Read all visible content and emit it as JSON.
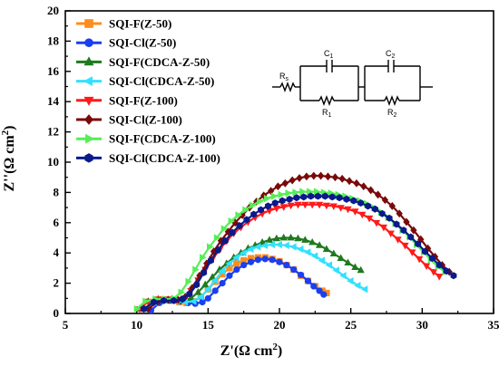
{
  "chart_data": {
    "type": "scatter",
    "title": "",
    "xlabel": "Z'(Ω cm²)",
    "ylabel": "Z''(Ω cm²)",
    "xlabel_parts": {
      "main": "Z'(Ω cm",
      "sup": "2",
      "end": ")"
    },
    "ylabel_parts": {
      "main": "Z''(Ω cm",
      "sup": "2",
      "end": ")"
    },
    "xlim": [
      5,
      35
    ],
    "ylim": [
      0,
      20
    ],
    "xticks": [
      5,
      10,
      15,
      20,
      25,
      30,
      35
    ],
    "yticks": [
      0,
      2,
      4,
      6,
      8,
      10,
      12,
      14,
      16,
      18,
      20
    ],
    "grid": false,
    "legend_position": "top-left",
    "series": [
      {
        "name": "SQI-F(Z-50)",
        "color": "#ff8c1a",
        "marker": "square",
        "x": [
          10.5,
          11.0,
          11.8,
          12.5,
          13.0,
          13.5,
          14.0,
          14.5,
          15.0,
          15.5,
          16.0,
          16.5,
          17.0,
          17.5,
          18.0,
          18.5,
          19.0,
          19.5,
          20.0,
          20.5,
          21.0,
          21.5,
          22.0,
          22.5,
          23.0,
          23.3
        ],
        "y": [
          0.3,
          0.7,
          0.9,
          0.85,
          0.75,
          0.7,
          0.8,
          1.1,
          1.6,
          2.1,
          2.6,
          3.0,
          3.3,
          3.5,
          3.65,
          3.7,
          3.7,
          3.6,
          3.45,
          3.2,
          2.9,
          2.5,
          2.15,
          1.8,
          1.5,
          1.35
        ]
      },
      {
        "name": "SQI-Cl(Z-50)",
        "color": "#1a3ff0",
        "marker": "circle",
        "x": [
          11.0,
          11.6,
          12.3,
          13.0,
          13.6,
          14.1,
          14.6,
          15.0,
          15.5,
          16.0,
          16.5,
          17.0,
          17.5,
          18.0,
          18.5,
          19.0,
          19.5,
          20.0,
          20.5,
          21.0,
          21.5,
          22.0,
          22.4,
          22.8,
          23.1
        ],
        "y": [
          0.2,
          0.7,
          0.85,
          0.8,
          0.7,
          0.65,
          0.75,
          1.0,
          1.5,
          2.0,
          2.5,
          2.9,
          3.2,
          3.4,
          3.55,
          3.6,
          3.55,
          3.4,
          3.2,
          2.9,
          2.55,
          2.15,
          1.8,
          1.5,
          1.25
        ]
      },
      {
        "name": "SQI-F(CDCA-Z-50)",
        "color": "#1e7a1e",
        "marker": "triangle-up",
        "x": [
          10.2,
          10.8,
          11.5,
          12.2,
          12.8,
          13.3,
          13.8,
          14.3,
          14.8,
          15.3,
          15.8,
          16.3,
          16.8,
          17.3,
          17.8,
          18.3,
          18.8,
          19.3,
          19.8,
          20.3,
          20.8,
          21.3,
          21.8,
          22.3,
          22.8,
          23.3,
          23.8,
          24.3,
          24.8,
          25.3,
          25.7
        ],
        "y": [
          0.3,
          0.8,
          0.95,
          0.9,
          0.85,
          0.85,
          1.0,
          1.4,
          1.9,
          2.4,
          2.9,
          3.3,
          3.7,
          4.0,
          4.3,
          4.5,
          4.7,
          4.85,
          4.95,
          5.0,
          5.0,
          4.95,
          4.85,
          4.7,
          4.5,
          4.25,
          3.95,
          3.65,
          3.35,
          3.05,
          2.85
        ]
      },
      {
        "name": "SQI-Cl(CDCA-Z-50)",
        "color": "#33e0ff",
        "marker": "triangle-left",
        "x": [
          10.5,
          11.2,
          12.0,
          12.8,
          13.4,
          14.0,
          14.5,
          15.0,
          15.5,
          16.0,
          16.5,
          17.0,
          17.5,
          18.0,
          18.5,
          19.0,
          19.5,
          20.0,
          20.5,
          21.0,
          21.5,
          22.0,
          22.5,
          23.0,
          23.5,
          24.0,
          24.5,
          25.0,
          25.5,
          26.0
        ],
        "y": [
          0.3,
          0.75,
          0.85,
          0.8,
          0.75,
          0.8,
          1.1,
          1.6,
          2.2,
          2.8,
          3.3,
          3.7,
          4.0,
          4.25,
          4.4,
          4.5,
          4.55,
          4.55,
          4.5,
          4.4,
          4.25,
          4.05,
          3.8,
          3.5,
          3.2,
          2.85,
          2.5,
          2.15,
          1.85,
          1.6
        ]
      },
      {
        "name": "SQI-F(Z-100)",
        "color": "#ff1a1a",
        "marker": "triangle-down",
        "x": [
          10.2,
          10.8,
          11.5,
          12.2,
          12.8,
          13.3,
          13.8,
          14.3,
          14.8,
          15.3,
          15.8,
          16.3,
          16.8,
          17.3,
          17.8,
          18.3,
          18.8,
          19.3,
          19.8,
          20.3,
          20.8,
          21.3,
          21.8,
          22.3,
          22.8,
          23.3,
          23.8,
          24.3,
          24.8,
          25.3,
          25.8,
          26.3,
          26.8,
          27.3,
          27.8,
          28.3,
          28.8,
          29.3,
          29.8,
          30.3,
          30.8,
          31.2
        ],
        "y": [
          0.3,
          0.8,
          0.95,
          0.95,
          0.9,
          1.0,
          1.5,
          2.2,
          2.9,
          3.6,
          4.2,
          4.8,
          5.3,
          5.7,
          6.05,
          6.35,
          6.6,
          6.8,
          6.95,
          7.05,
          7.15,
          7.2,
          7.2,
          7.2,
          7.2,
          7.15,
          7.1,
          7.0,
          6.9,
          6.75,
          6.55,
          6.3,
          6.0,
          5.7,
          5.3,
          4.9,
          4.5,
          4.05,
          3.6,
          3.15,
          2.75,
          2.45
        ]
      },
      {
        "name": "SQI-Cl(Z-100)",
        "color": "#7a0a0a",
        "marker": "diamond",
        "x": [
          10.8,
          11.5,
          12.2,
          12.9,
          13.4,
          13.9,
          14.4,
          14.9,
          15.4,
          15.9,
          16.4,
          16.9,
          17.4,
          17.9,
          18.4,
          18.9,
          19.4,
          19.9,
          20.4,
          20.9,
          21.4,
          21.9,
          22.4,
          22.9,
          23.4,
          23.9,
          24.4,
          24.9,
          25.4,
          25.9,
          26.4,
          26.9,
          27.4,
          27.9,
          28.4,
          28.9,
          29.4,
          29.9,
          30.4,
          30.9,
          31.4,
          31.9
        ],
        "y": [
          0.3,
          0.8,
          0.9,
          0.9,
          1.1,
          1.7,
          2.5,
          3.3,
          4.1,
          4.8,
          5.4,
          6.0,
          6.5,
          7.0,
          7.4,
          7.8,
          8.1,
          8.4,
          8.6,
          8.8,
          8.95,
          9.05,
          9.1,
          9.1,
          9.05,
          9.0,
          8.9,
          8.75,
          8.6,
          8.4,
          8.15,
          7.85,
          7.5,
          7.1,
          6.6,
          6.05,
          5.5,
          4.9,
          4.3,
          3.75,
          3.2,
          2.75
        ]
      },
      {
        "name": "SQI-F(CDCA-Z-100)",
        "color": "#55ee55",
        "marker": "triangle-right",
        "x": [
          10.0,
          10.6,
          11.3,
          12.0,
          12.6,
          13.1,
          13.6,
          14.1,
          14.6,
          15.1,
          15.6,
          16.1,
          16.6,
          17.1,
          17.6,
          18.1,
          18.6,
          19.1,
          19.6,
          20.1,
          20.6,
          21.1,
          21.6,
          22.1,
          22.6,
          23.1,
          23.6,
          24.1,
          24.6,
          25.1,
          25.6,
          26.1,
          26.6,
          27.1,
          27.6,
          28.1,
          28.6,
          29.1,
          29.6,
          30.1,
          30.6,
          31.1,
          31.6
        ],
        "y": [
          0.3,
          0.8,
          0.95,
          0.95,
          1.0,
          1.4,
          2.1,
          2.9,
          3.7,
          4.4,
          5.0,
          5.6,
          6.1,
          6.5,
          6.85,
          7.15,
          7.4,
          7.6,
          7.75,
          7.85,
          7.95,
          8.0,
          8.05,
          8.05,
          8.05,
          8.0,
          7.95,
          7.85,
          7.75,
          7.6,
          7.45,
          7.25,
          7.0,
          6.7,
          6.35,
          5.95,
          5.5,
          5.05,
          4.55,
          4.05,
          3.55,
          3.1,
          2.75
        ]
      },
      {
        "name": "SQI-Cl(CDCA-Z-100)",
        "color": "#0a1a8a",
        "marker": "hexagon",
        "x": [
          10.5,
          11.2,
          11.9,
          12.6,
          13.2,
          13.7,
          14.2,
          14.7,
          15.2,
          15.7,
          16.2,
          16.7,
          17.2,
          17.7,
          18.2,
          18.7,
          19.2,
          19.7,
          20.2,
          20.7,
          21.2,
          21.7,
          22.2,
          22.7,
          23.2,
          23.7,
          24.2,
          24.7,
          25.2,
          25.7,
          26.2,
          26.7,
          27.2,
          27.7,
          28.2,
          28.7,
          29.2,
          29.7,
          30.2,
          30.7,
          31.2,
          31.7,
          32.2
        ],
        "y": [
          0.3,
          0.75,
          0.85,
          0.85,
          0.95,
          1.3,
          1.9,
          2.7,
          3.5,
          4.2,
          4.8,
          5.35,
          5.8,
          6.2,
          6.55,
          6.85,
          7.1,
          7.3,
          7.45,
          7.55,
          7.65,
          7.7,
          7.75,
          7.75,
          7.75,
          7.7,
          7.65,
          7.55,
          7.45,
          7.3,
          7.1,
          6.9,
          6.6,
          6.3,
          5.9,
          5.5,
          5.05,
          4.6,
          4.1,
          3.65,
          3.2,
          2.8,
          2.5
        ]
      }
    ],
    "inset_circuit": {
      "labels": {
        "rs": "R",
        "rs_sub": "s",
        "c1": "C",
        "c1_sub": "1",
        "r1": "R",
        "r1_sub": "1",
        "c2": "C",
        "c2_sub": "2",
        "r2": "R",
        "r2_sub": "2"
      }
    }
  }
}
